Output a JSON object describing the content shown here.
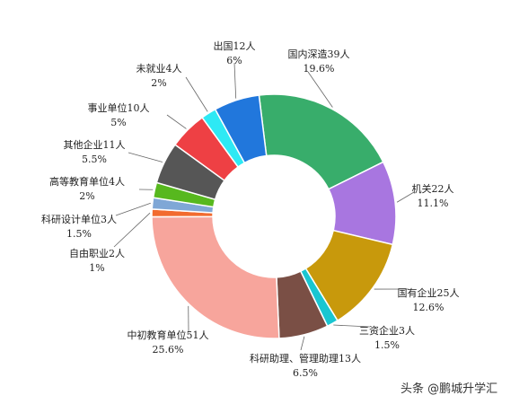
{
  "chart_data": {
    "type": "pie",
    "donut": true,
    "unit_suffix": "人",
    "slices": [
      {
        "name": "国内深造",
        "count": 39,
        "percent": "19.6%",
        "color": "#38ad6b"
      },
      {
        "name": "机关",
        "count": 22,
        "percent": "11.1%",
        "color": "#a876e0"
      },
      {
        "name": "国有企业",
        "count": 25,
        "percent": "12.6%",
        "color": "#c8990c"
      },
      {
        "name": "三资企业",
        "count": 3,
        "percent": "1.5%",
        "color": "#19c6d1"
      },
      {
        "name": "科研助理、管理助理",
        "count": 13,
        "percent": "6.5%",
        "color": "#7a4f45"
      },
      {
        "name": "中初教育单位",
        "count": 51,
        "percent": "25.6%",
        "color": "#f7a59c"
      },
      {
        "name": "自由职业",
        "count": 2,
        "percent": "1%",
        "color": "#f26b2f"
      },
      {
        "name": "科研设计单位",
        "count": 3,
        "percent": "1.5%",
        "color": "#7fa7d6"
      },
      {
        "name": "高等教育单位",
        "count": 4,
        "percent": "2%",
        "color": "#57b81e"
      },
      {
        "name": "其他企业",
        "count": 11,
        "percent": "5.5%",
        "color": "#565656"
      },
      {
        "name": "事业单位",
        "count": 10,
        "percent": "5%",
        "color": "#ee4044"
      },
      {
        "name": "未就业",
        "count": 4,
        "percent": "2%",
        "color": "#2ee9f4"
      },
      {
        "name": "出国",
        "count": 12,
        "percent": "6%",
        "color": "#2177dc"
      }
    ]
  },
  "watermark": "头条 @鹏城升学汇"
}
